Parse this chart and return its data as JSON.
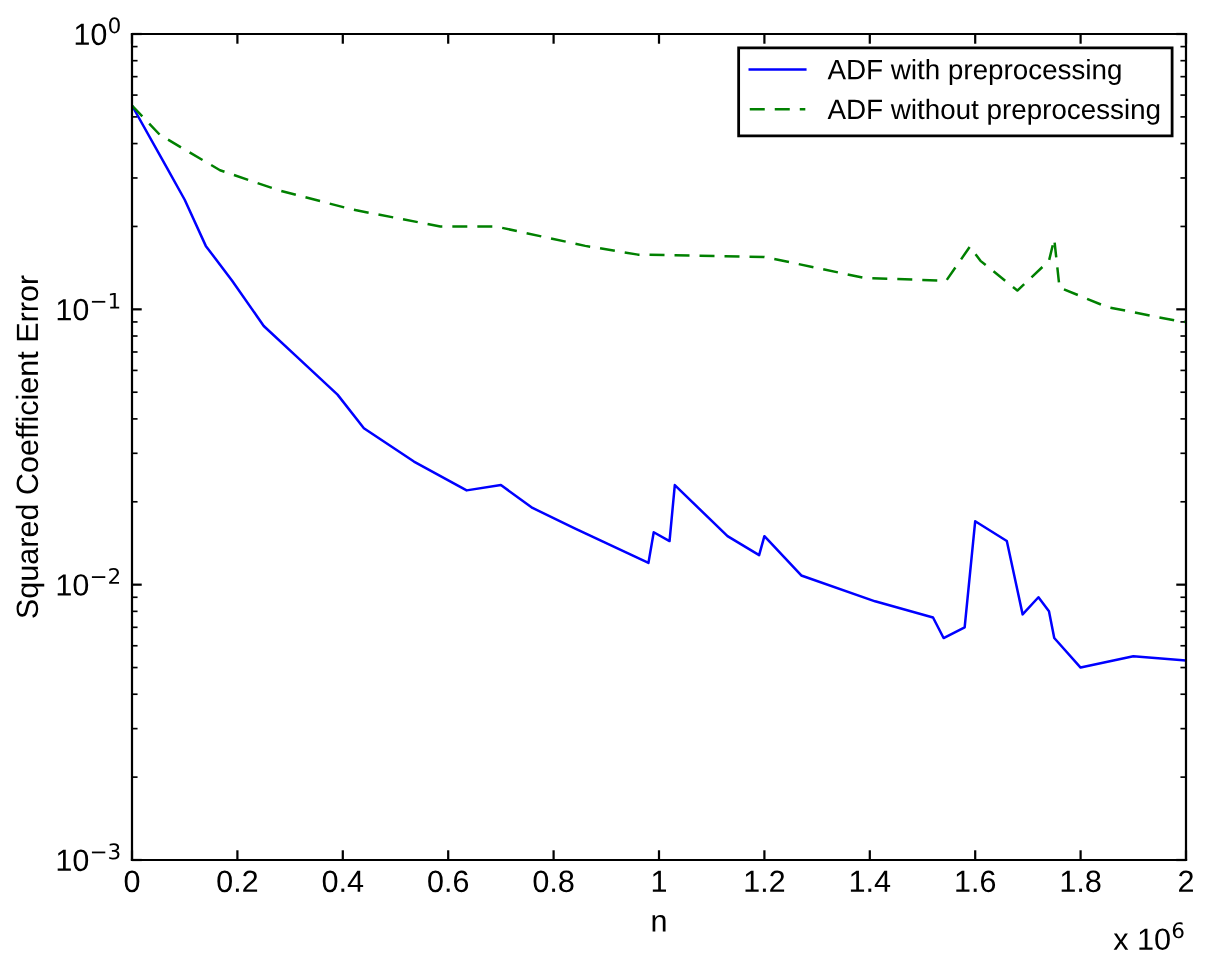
{
  "chart_data": {
    "type": "line",
    "xlabel": "n",
    "ylabel": "Squared Coefficient Error",
    "log": "y",
    "xlim": [
      0,
      2
    ],
    "xticks": [
      0,
      0.2,
      0.4,
      0.6,
      0.8,
      1,
      1.2,
      1.4,
      1.6,
      1.8,
      2
    ],
    "ylim": [
      0.001,
      1
    ],
    "yticks": [
      {
        "value": 0.001,
        "label": "10$^{−3}$"
      },
      {
        "value": 0.01,
        "label": "10$^{−2}$"
      },
      {
        "value": 0.1,
        "label": "10$^{−1}$"
      },
      {
        "value": 1,
        "label": "10$^{0}$"
      }
    ],
    "annotations": [
      "x 10$^{6}$"
    ],
    "legend": "top right",
    "grid": false,
    "series": [
      {
        "name": "ADF with preprocessing",
        "color": "#0000ff",
        "line_style": "solid",
        "x": [
          0,
          0.065,
          0.1,
          0.14,
          0.19,
          0.25,
          0.31,
          0.39,
          0.44,
          0.535,
          0.635,
          0.7,
          0.76,
          0.84,
          0.98,
          0.99,
          1.02,
          1.03,
          1.13,
          1.19,
          1.2,
          1.27,
          1.41,
          1.52,
          1.54,
          1.58,
          1.6,
          1.66,
          1.69,
          1.72,
          1.74,
          1.75,
          1.8,
          1.9,
          2
        ],
        "values": [
          0.55,
          0.33,
          0.25,
          0.17,
          0.127,
          0.087,
          0.068,
          0.049,
          0.037,
          0.028,
          0.022,
          0.023,
          0.019,
          0.016,
          0.012,
          0.0155,
          0.0144,
          0.023,
          0.015,
          0.0128,
          0.015,
          0.0108,
          0.0087,
          0.0076,
          0.0064,
          0.007,
          0.017,
          0.0144,
          0.0078,
          0.009,
          0.008,
          0.0064,
          0.005,
          0.0055,
          0.0053
        ]
      },
      {
        "name": "ADF without preprocessing",
        "color": "#008000",
        "line_style": "dashed",
        "x": [
          0,
          0.053,
          0.167,
          0.28,
          0.42,
          0.585,
          0.69,
          0.86,
          0.96,
          1.2,
          1.39,
          1.545,
          1.59,
          1.61,
          1.68,
          1.74,
          1.75,
          1.76,
          1.85,
          1.98,
          2
        ],
        "values": [
          0.55,
          0.43,
          0.32,
          0.27,
          0.23,
          0.2,
          0.2,
          0.17,
          0.158,
          0.155,
          0.13,
          0.127,
          0.169,
          0.15,
          0.117,
          0.15,
          0.18,
          0.12,
          0.102,
          0.091,
          0.09
        ]
      }
    ]
  }
}
